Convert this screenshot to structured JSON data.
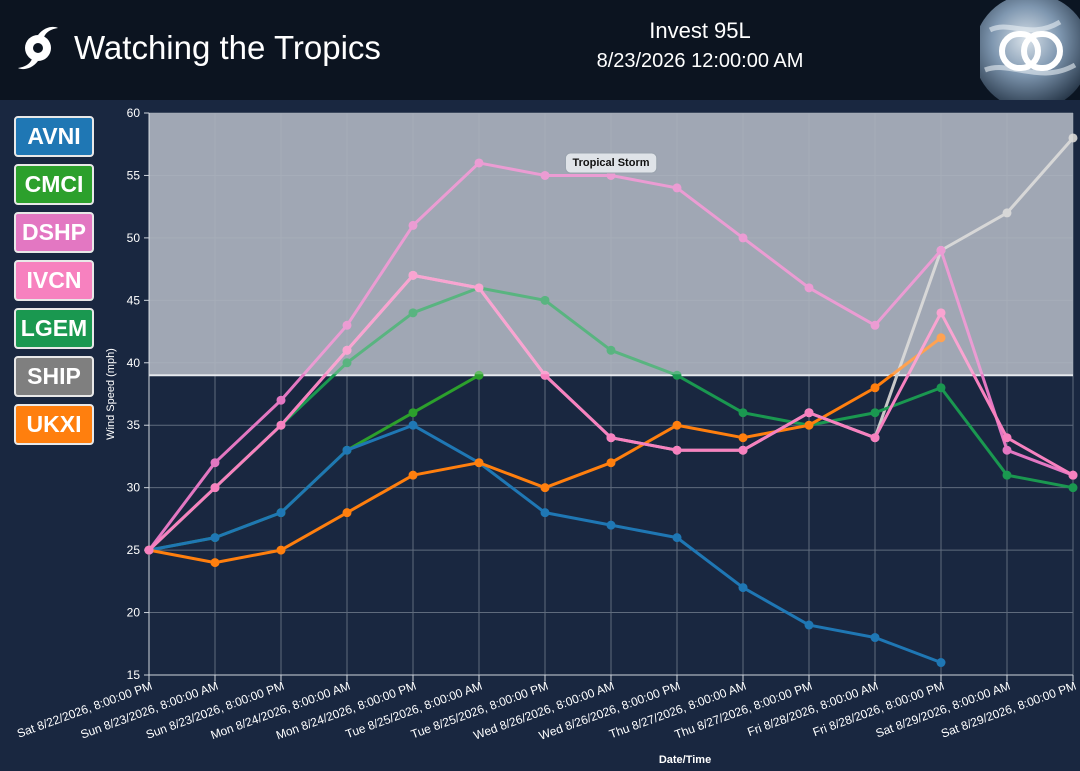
{
  "header": {
    "app_title": "Watching the Tropics",
    "storm_name": "Invest 95L",
    "timestamp": "8/23/2026 12:00:00 AM"
  },
  "colors": {
    "header_bg": "#0c1420",
    "page_bg": "#192740",
    "shade_fill": "#8a93a3"
  },
  "legend": [
    {
      "label": "AVNI",
      "color": "#1f77b4"
    },
    {
      "label": "CMCI",
      "color": "#2ca02c"
    },
    {
      "label": "DSHP",
      "color": "#e377c2"
    },
    {
      "label": "IVCN",
      "color": "#f781bf"
    },
    {
      "label": "LGEM",
      "color": "#1a9850"
    },
    {
      "label": "SHIP",
      "color": "#7f7f7f"
    },
    {
      "label": "UKXI",
      "color": "#ff7f0e"
    }
  ],
  "chart_data": {
    "type": "line",
    "xlabel": "Date/Time",
    "ylabel": "Wind Speed (mph)",
    "ylim": [
      15,
      60
    ],
    "yticks": [
      15,
      20,
      25,
      30,
      35,
      40,
      45,
      50,
      55,
      60
    ],
    "grid": true,
    "categories": [
      "Sat 8/22/2026, 8:00:00 PM",
      "Sun 8/23/2026, 8:00:00 AM",
      "Sun 8/23/2026, 8:00:00 PM",
      "Mon 8/24/2026, 8:00:00 AM",
      "Mon 8/24/2026, 8:00:00 PM",
      "Tue 8/25/2026, 8:00:00 AM",
      "Tue 8/25/2026, 8:00:00 PM",
      "Wed 8/26/2026, 8:00:00 AM",
      "Wed 8/26/2026, 8:00:00 PM",
      "Thu 8/27/2026, 8:00:00 AM",
      "Thu 8/27/2026, 8:00:00 PM",
      "Fri 8/28/2026, 8:00:00 AM",
      "Fri 8/28/2026, 8:00:00 PM",
      "Sat 8/29/2026, 8:00:00 AM",
      "Sat 8/29/2026, 8:00:00 PM"
    ],
    "threshold": {
      "label": "Tropical Storm",
      "value": 39
    },
    "series": [
      {
        "name": "SHIP",
        "color": "#c8c8c8",
        "values": [
          25,
          30,
          35,
          41,
          47,
          46,
          39,
          34,
          33,
          33,
          36,
          34,
          49,
          52,
          58
        ]
      },
      {
        "name": "LGEM",
        "color": "#1a9850",
        "values": [
          25,
          30,
          35,
          40,
          44,
          46,
          45,
          41,
          39,
          36,
          35,
          36,
          38,
          31,
          30
        ]
      },
      {
        "name": "CMCI",
        "color": "#2ca02c",
        "values": [
          25,
          26,
          28,
          33,
          36,
          39,
          null,
          null,
          null,
          null,
          null,
          null,
          null,
          null,
          null
        ]
      },
      {
        "name": "AVNI",
        "color": "#1f77b4",
        "values": [
          25,
          26,
          28,
          33,
          35,
          32,
          28,
          27,
          26,
          22,
          19,
          18,
          16,
          null,
          null
        ]
      },
      {
        "name": "UKXI",
        "color": "#ff7f0e",
        "values": [
          25,
          24,
          25,
          28,
          31,
          32,
          30,
          32,
          35,
          34,
          35,
          38,
          42,
          null,
          null
        ]
      },
      {
        "name": "DSHP",
        "color": "#e377c2",
        "values": [
          25,
          32,
          37,
          43,
          51,
          56,
          55,
          55,
          54,
          50,
          46,
          43,
          49,
          33,
          31
        ]
      },
      {
        "name": "IVCN",
        "color": "#f781bf",
        "values": [
          25,
          30,
          35,
          41,
          47,
          46,
          39,
          34,
          33,
          33,
          36,
          34,
          44,
          34,
          31
        ]
      }
    ]
  }
}
